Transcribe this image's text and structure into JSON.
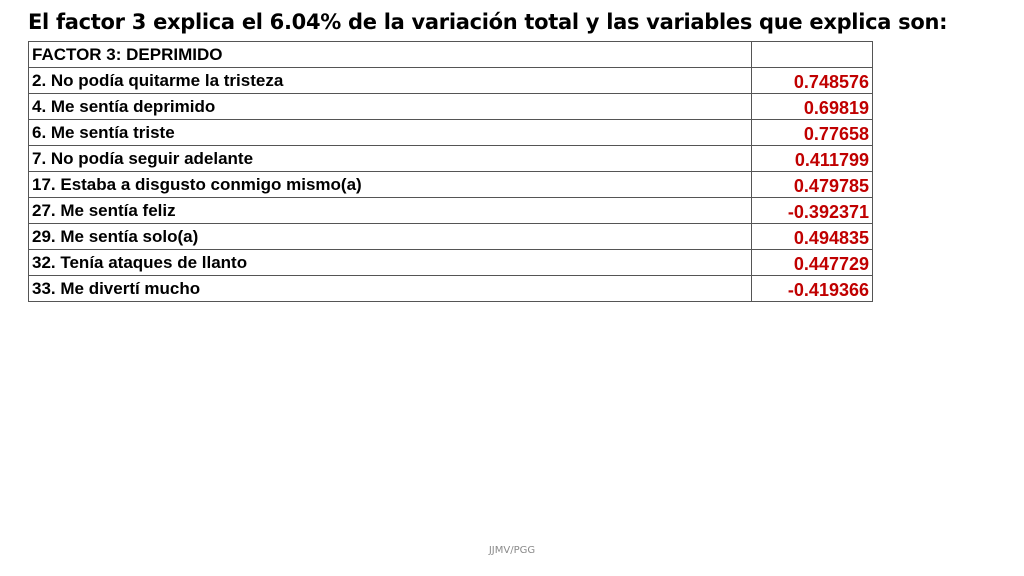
{
  "title": "El factor 3 explica el 6.04% de la variación total y las variables que explica son:",
  "table": {
    "header": {
      "label": "FACTOR 3: DEPRIMIDO",
      "value": ""
    },
    "rows": [
      {
        "label": "2. No podía quitarme la tristeza",
        "value": "0.748576"
      },
      {
        "label": "4. Me sentía deprimido",
        "value": "0.69819"
      },
      {
        "label": "6. Me sentía triste",
        "value": "0.77658"
      },
      {
        "label": "7. No podía seguir adelante",
        "value": "0.411799"
      },
      {
        "label": "17. Estaba a disgusto conmigo mismo(a)",
        "value": "0.479785"
      },
      {
        "label": "27. Me sentía feliz",
        "value": "-0.392371"
      },
      {
        "label": "29. Me sentía solo(a)",
        "value": "0.494835"
      },
      {
        "label": "32. Tenía ataques de llanto",
        "value": "0.447729"
      },
      {
        "label": "33. Me divertí mucho",
        "value": "-0.419366"
      }
    ]
  },
  "footer": "JJMV/PGG",
  "colors": {
    "value_text": "#c00000",
    "label_text": "#000000"
  }
}
